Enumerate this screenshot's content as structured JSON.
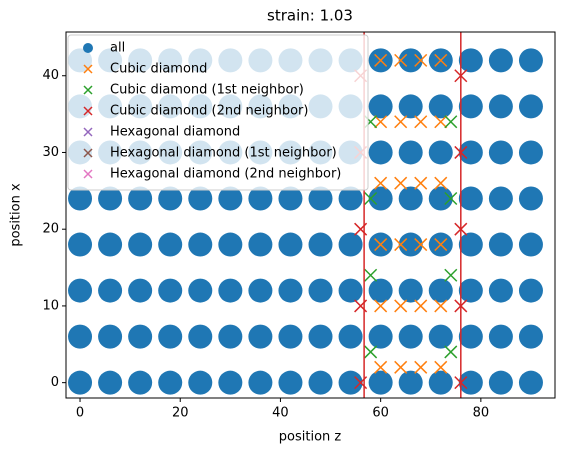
{
  "chart_data": {
    "type": "scatter",
    "title": "strain: 1.03",
    "xlabel": "position z",
    "ylabel": "position x",
    "xlim": [
      -2.8,
      94.8
    ],
    "ylim": [
      -2,
      45.7
    ],
    "xticks": [
      0,
      20,
      40,
      60,
      80
    ],
    "yticks": [
      0,
      10,
      20,
      30,
      40
    ],
    "legend": "upper left",
    "vlines": [
      56.7,
      76
    ],
    "vline_color": "#d62728",
    "series": [
      {
        "name": "all",
        "color": "#1f77b4",
        "marker": "o",
        "x": [
          0,
          6,
          12,
          18,
          24,
          30,
          36,
          42,
          48,
          54,
          60,
          66,
          72,
          78,
          84,
          90,
          0,
          6,
          12,
          18,
          24,
          30,
          36,
          42,
          48,
          54,
          60,
          66,
          72,
          78,
          84,
          90,
          0,
          6,
          12,
          18,
          24,
          30,
          36,
          42,
          48,
          54,
          60,
          66,
          72,
          78,
          84,
          90,
          0,
          6,
          12,
          18,
          24,
          30,
          36,
          42,
          48,
          54,
          60,
          66,
          72,
          78,
          84,
          90,
          0,
          6,
          12,
          18,
          24,
          30,
          36,
          42,
          48,
          54,
          60,
          66,
          72,
          78,
          84,
          90,
          0,
          6,
          12,
          18,
          24,
          30,
          36,
          42,
          48,
          54,
          60,
          66,
          72,
          78,
          84,
          90,
          0,
          6,
          12,
          18,
          24,
          30,
          36,
          42,
          48,
          54,
          60,
          66,
          72,
          78,
          84,
          90,
          0,
          6,
          12,
          18,
          24,
          30,
          36,
          42,
          48,
          54,
          60,
          66,
          72,
          78,
          84,
          90
        ],
        "values": [
          0,
          0,
          0,
          0,
          0,
          0,
          0,
          0,
          0,
          0,
          0,
          0,
          0,
          0,
          0,
          0,
          6,
          6,
          6,
          6,
          6,
          6,
          6,
          6,
          6,
          6,
          6,
          6,
          6,
          6,
          6,
          6,
          12,
          12,
          12,
          12,
          12,
          12,
          12,
          12,
          12,
          12,
          12,
          12,
          12,
          12,
          12,
          12,
          18,
          18,
          18,
          18,
          18,
          18,
          18,
          18,
          18,
          18,
          18,
          18,
          18,
          18,
          18,
          18,
          24,
          24,
          24,
          24,
          24,
          24,
          24,
          24,
          24,
          24,
          24,
          24,
          24,
          24,
          24,
          24,
          30,
          30,
          30,
          30,
          30,
          30,
          30,
          30,
          30,
          30,
          30,
          30,
          30,
          30,
          30,
          30,
          36,
          36,
          36,
          36,
          36,
          36,
          36,
          36,
          36,
          36,
          36,
          36,
          36,
          36,
          36,
          36,
          42,
          42,
          42,
          42,
          42,
          42,
          42,
          42,
          42,
          42,
          42,
          42,
          42,
          42,
          42,
          42
        ]
      },
      {
        "name": "Cubic diamond",
        "color": "#ff7f0e",
        "marker": "x",
        "x": [
          60,
          64,
          68,
          72,
          60,
          64,
          68,
          72,
          60,
          64,
          68,
          72,
          60,
          64,
          68,
          72,
          60,
          64,
          68,
          72,
          60,
          64,
          68,
          72
        ],
        "values": [
          2,
          2,
          2,
          2,
          10,
          10,
          10,
          10,
          18,
          18,
          18,
          18,
          26,
          26,
          26,
          26,
          34,
          34,
          34,
          34,
          42,
          42,
          42,
          42
        ]
      },
      {
        "name": "Cubic diamond (1st neighbor)",
        "color": "#2ca02c",
        "marker": "x",
        "x": [
          58,
          74,
          58,
          74,
          58,
          74,
          58,
          74
        ],
        "values": [
          4,
          4,
          14,
          14,
          24,
          24,
          34,
          34
        ]
      },
      {
        "name": "Cubic diamond (2nd neighbor)",
        "color": "#d62728",
        "marker": "x",
        "x": [
          56,
          76,
          56,
          76,
          56,
          76,
          56,
          76,
          56,
          76
        ],
        "values": [
          0,
          0,
          10,
          10,
          20,
          20,
          30,
          30,
          40,
          40
        ]
      },
      {
        "name": "Hexagonal diamond",
        "color": "#9467bd",
        "marker": "x",
        "x": [],
        "values": []
      },
      {
        "name": "Hexagonal diamond (1st neighbor)",
        "color": "#8c564b",
        "marker": "x",
        "x": [],
        "values": []
      },
      {
        "name": "Hexagonal diamond (2nd neighbor)",
        "color": "#e377c2",
        "marker": "x",
        "x": [],
        "values": []
      }
    ]
  }
}
